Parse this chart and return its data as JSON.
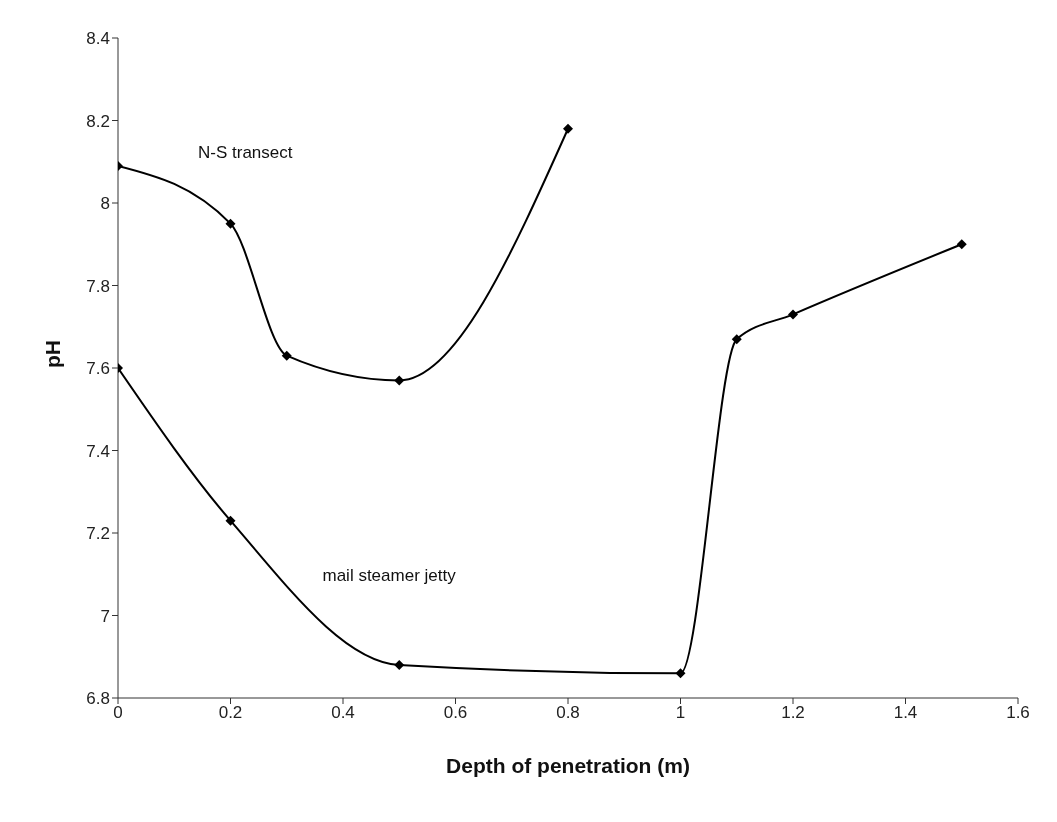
{
  "chart_data": {
    "type": "line",
    "xlabel": "Depth of penetration (m)",
    "ylabel": "pH",
    "xlim": [
      0,
      1.6
    ],
    "xticks": [
      0,
      0.2,
      0.4,
      0.6,
      0.8,
      1,
      1.2,
      1.4,
      1.6
    ],
    "ylim": [
      6.8,
      8.4
    ],
    "yticks": [
      6.8,
      7,
      7.2,
      7.4,
      7.6,
      7.8,
      8,
      8.2,
      8.4
    ],
    "marker": "diamond",
    "line_style": "solid",
    "series": [
      {
        "name": "N-S transect",
        "color": "#000000",
        "x": [
          0,
          0.2,
          0.3,
          0.5,
          0.8
        ],
        "values": [
          8.09,
          7.95,
          7.63,
          7.57,
          8.18
        ]
      },
      {
        "name": "mail steamer jetty",
        "color": "#000000",
        "x": [
          0,
          0.2,
          0.5,
          1,
          1.1,
          1.2,
          1.5
        ],
        "values": [
          7.6,
          7.23,
          6.88,
          6.86,
          7.67,
          7.73,
          7.9
        ]
      }
    ]
  }
}
